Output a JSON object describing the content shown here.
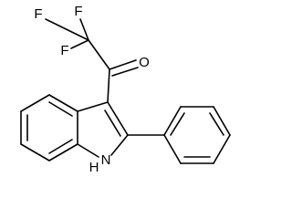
{
  "atoms": [
    {
      "label": "F"
    },
    {
      "label": "F"
    },
    {
      "label": "F"
    },
    {
      "label": "O"
    },
    {
      "label": "N"
    },
    {
      "label": "H"
    }
  ]
}
